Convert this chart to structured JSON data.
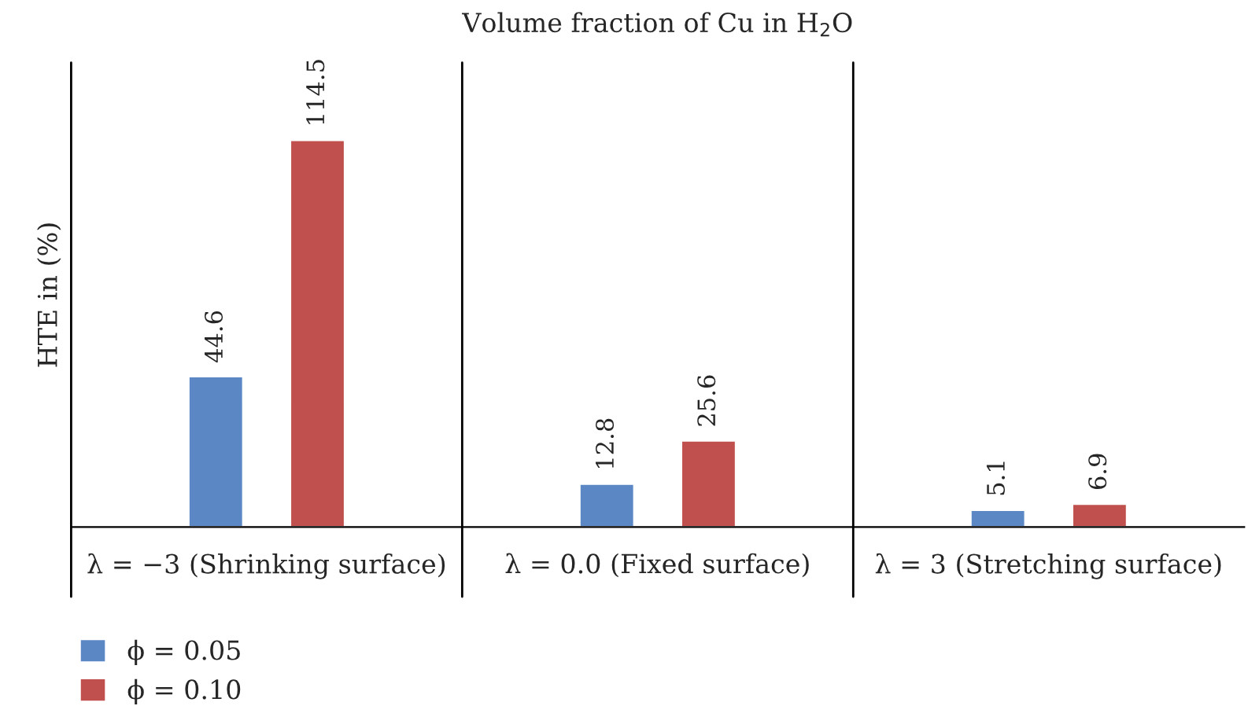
{
  "chart_data": {
    "type": "bar",
    "title": "Volume fraction of Cu in H$_{2}$O",
    "ylabel": "HTE in (%)",
    "categories": [
      "λ = −3 (Shrinking surface)",
      "λ = 0.0 (Fixed surface)",
      "λ = 3 (Stretching surface)"
    ],
    "series": [
      {
        "name": "ϕ = 0.05",
        "color": "#5b87c5",
        "values": [
          44.6,
          12.8,
          5.1
        ]
      },
      {
        "name": "ϕ = 0.10",
        "color": "#c0504d",
        "values": [
          114.5,
          25.6,
          6.9
        ]
      }
    ],
    "data_labels": true,
    "legend": "bottom left",
    "grid": false
  }
}
